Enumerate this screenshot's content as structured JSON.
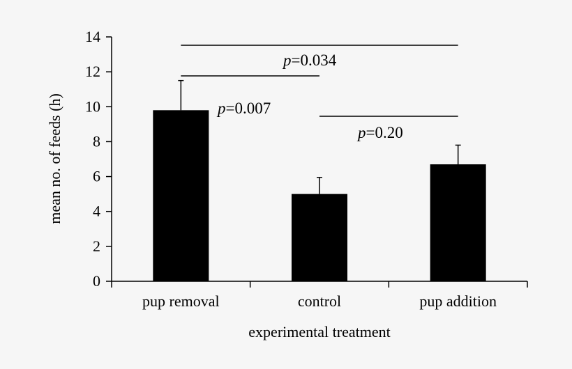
{
  "chart_data": {
    "type": "bar",
    "categories": [
      "pup removal",
      "control",
      "pup addition"
    ],
    "values": [
      9.8,
      5.0,
      6.7
    ],
    "error": [
      1.7,
      0.95,
      1.1
    ],
    "xlabel": "experimental treatment",
    "ylabel": "mean no. of feeds (h)",
    "ylim": [
      0,
      14
    ],
    "yticks": [
      "0",
      "2",
      "4",
      "6",
      "8",
      "10",
      "12",
      "14"
    ],
    "grid": false,
    "legend": "none",
    "annotations": [
      {
        "p_symbol": "p",
        "p_value": "=0.007",
        "from": "pup removal",
        "to": "control"
      },
      {
        "p_symbol": "p",
        "p_value": "=0.034",
        "from": "pup removal",
        "to": "pup addition"
      },
      {
        "p_symbol": "p",
        "p_value": "=0.20",
        "from": "control",
        "to": "pup addition"
      }
    ],
    "colors": {
      "bar": "#000000",
      "background": "#f6f6f6"
    }
  }
}
